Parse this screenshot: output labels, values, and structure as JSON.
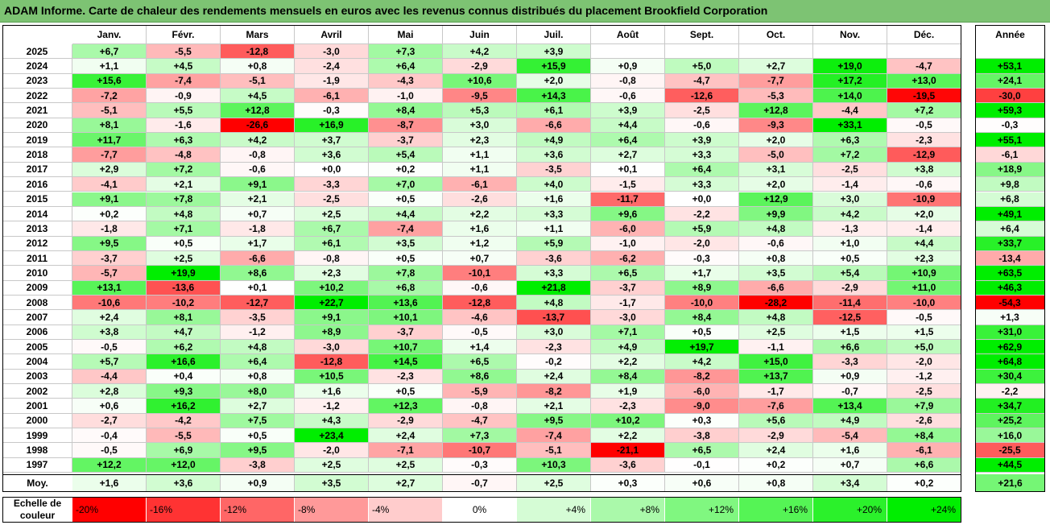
{
  "title": "ADAM Informe. Carte de chaleur des rendements mensuels en euros avec les revenus connus distribués du placement Brookfield Corporation",
  "chart_data": {
    "type": "heatmap",
    "months": [
      "Janv.",
      "Févr.",
      "Mars",
      "Avril",
      "Mai",
      "Juin",
      "Juil.",
      "Août",
      "Sept.",
      "Oct.",
      "Nov.",
      "Déc."
    ],
    "year_header": "Année",
    "years": [
      "2025",
      "2024",
      "2023",
      "2022",
      "2021",
      "2020",
      "2019",
      "2018",
      "2017",
      "2016",
      "2015",
      "2014",
      "2013",
      "2012",
      "2011",
      "2010",
      "2009",
      "2008",
      "2007",
      "2006",
      "2005",
      "2004",
      "2003",
      "2002",
      "2001",
      "2000",
      "1999",
      "1998",
      "1997"
    ],
    "values": [
      [
        6.7,
        -5.5,
        -12.8,
        -3.0,
        7.3,
        4.2,
        3.9,
        null,
        null,
        null,
        null,
        null
      ],
      [
        1.1,
        4.5,
        0.8,
        -2.4,
        6.4,
        -2.9,
        15.9,
        0.9,
        5.0,
        2.7,
        19.0,
        -4.7
      ],
      [
        15.6,
        -7.4,
        -5.1,
        -1.9,
        -4.3,
        10.6,
        2.0,
        -0.8,
        -4.7,
        -7.7,
        17.2,
        13.0
      ],
      [
        -7.2,
        -0.9,
        4.5,
        -6.1,
        -1.0,
        -9.5,
        14.3,
        -0.6,
        -12.6,
        -5.3,
        14.0,
        -19.5
      ],
      [
        -5.1,
        5.5,
        12.8,
        -0.3,
        8.4,
        5.3,
        6.1,
        3.9,
        -2.5,
        12.8,
        -4.4,
        7.2
      ],
      [
        8.1,
        -1.6,
        -26.6,
        16.9,
        -8.7,
        3.0,
        -6.6,
        4.4,
        -0.6,
        -9.3,
        33.1,
        -0.5
      ],
      [
        11.7,
        6.3,
        4.2,
        3.7,
        -3.7,
        2.3,
        4.9,
        6.4,
        3.9,
        2.0,
        6.3,
        -2.3
      ],
      [
        -7.7,
        -4.8,
        -0.8,
        3.6,
        5.4,
        1.1,
        3.6,
        2.7,
        3.3,
        -5.0,
        7.2,
        -12.9
      ],
      [
        2.9,
        7.2,
        -0.6,
        -0.0,
        0.2,
        1.1,
        -3.5,
        0.1,
        6.4,
        3.1,
        -2.5,
        3.8
      ],
      [
        -4.1,
        2.1,
        9.1,
        -3.3,
        7.0,
        -6.1,
        4.0,
        -1.5,
        3.3,
        2.0,
        -1.4,
        -0.6
      ],
      [
        9.1,
        7.8,
        2.1,
        -2.5,
        0.5,
        -2.6,
        1.6,
        -11.7,
        0.0,
        12.9,
        3.0,
        -10.9
      ],
      [
        0.2,
        4.8,
        0.7,
        2.5,
        4.4,
        2.2,
        3.3,
        9.6,
        -2.2,
        9.9,
        4.2,
        2.0
      ],
      [
        -1.8,
        7.1,
        -1.8,
        6.7,
        -7.4,
        1.6,
        1.1,
        -6.0,
        5.9,
        4.8,
        -1.3,
        -1.4
      ],
      [
        9.5,
        0.5,
        1.7,
        6.1,
        3.5,
        1.2,
        5.9,
        -1.0,
        -2.0,
        -0.6,
        1.0,
        4.4
      ],
      [
        -3.7,
        2.5,
        -6.6,
        -0.8,
        0.5,
        0.7,
        -3.6,
        -6.2,
        -0.3,
        0.8,
        0.5,
        2.3
      ],
      [
        -5.7,
        19.9,
        8.6,
        2.3,
        7.8,
        -10.1,
        3.3,
        6.5,
        1.7,
        3.5,
        5.4,
        10.9
      ],
      [
        13.1,
        -13.6,
        0.1,
        10.2,
        6.8,
        -0.6,
        21.8,
        -3.7,
        8.9,
        -6.6,
        -2.9,
        11.0
      ],
      [
        -10.6,
        -10.2,
        -12.7,
        22.7,
        13.6,
        -12.8,
        4.8,
        -1.7,
        -10.0,
        -28.2,
        -11.4,
        -10.0
      ],
      [
        2.4,
        8.1,
        -3.5,
        9.1,
        10.1,
        -4.6,
        -13.7,
        -3.0,
        8.4,
        4.8,
        -12.5,
        -0.5
      ],
      [
        3.8,
        4.7,
        -1.2,
        8.9,
        -3.7,
        -0.5,
        3.0,
        7.1,
        0.5,
        2.5,
        1.5,
        1.5
      ],
      [
        -0.5,
        6.2,
        4.8,
        -3.0,
        10.7,
        1.4,
        -2.3,
        4.9,
        19.7,
        -1.1,
        6.6,
        5.0
      ],
      [
        5.7,
        16.6,
        6.4,
        -12.8,
        14.5,
        6.5,
        -0.2,
        2.2,
        4.2,
        15.0,
        -3.3,
        -2.0
      ],
      [
        -4.4,
        0.4,
        0.8,
        10.5,
        -2.3,
        8.6,
        2.4,
        8.4,
        -8.2,
        13.7,
        0.9,
        -1.2
      ],
      [
        2.8,
        9.3,
        8.0,
        1.6,
        0.5,
        -5.9,
        -8.2,
        1.9,
        -6.0,
        -1.7,
        -0.7,
        -2.5
      ],
      [
        0.6,
        16.2,
        2.7,
        -1.2,
        12.3,
        -0.8,
        2.1,
        -2.3,
        -9.0,
        -7.6,
        13.4,
        7.9
      ],
      [
        -2.7,
        -4.2,
        7.5,
        4.3,
        -2.9,
        -4.7,
        9.5,
        10.2,
        0.3,
        5.6,
        4.9,
        -2.6
      ],
      [
        -0.4,
        -5.5,
        0.5,
        23.4,
        2.4,
        7.3,
        -7.4,
        2.2,
        -3.8,
        -2.9,
        -5.4,
        8.4
      ],
      [
        -0.5,
        6.9,
        9.5,
        -2.0,
        -7.1,
        -10.7,
        -5.1,
        -21.1,
        6.5,
        2.4,
        1.6,
        -6.1
      ],
      [
        12.2,
        12.0,
        -3.8,
        2.5,
        2.5,
        -0.3,
        10.3,
        -3.6,
        -0.1,
        0.2,
        0.7,
        6.6
      ]
    ],
    "annual": [
      null,
      53.1,
      24.1,
      -30.0,
      59.3,
      -0.3,
      55.1,
      -6.1,
      18.9,
      9.8,
      6.8,
      49.1,
      6.4,
      33.7,
      -13.4,
      63.5,
      46.3,
      -54.3,
      1.3,
      31.0,
      62.9,
      64.8,
      30.4,
      -2.2,
      34.7,
      25.2,
      16.0,
      -25.5,
      44.5
    ],
    "average_label": "Moy.",
    "averages": [
      1.6,
      3.6,
      0.9,
      3.5,
      2.7,
      -0.7,
      2.5,
      0.3,
      0.6,
      0.8,
      3.4,
      0.2
    ],
    "average_annual": 21.6,
    "scale_label_line1": "Echelle de",
    "scale_label_line2": "couleur",
    "scale_labels": [
      "-20%",
      "-16%",
      "-12%",
      "-8%",
      "-4%",
      "0%",
      "+4%",
      "+8%",
      "+12%",
      "+16%",
      "+20%",
      "+24%"
    ],
    "scale_values": [
      -20,
      -16,
      -12,
      -8,
      -4,
      0,
      4,
      8,
      12,
      16,
      20,
      24
    ],
    "colors": {
      "negative_max": "#ff0000",
      "positive_max": "#00ee00",
      "neutral": "#ffffff",
      "title_bar": "#7dc373"
    }
  }
}
